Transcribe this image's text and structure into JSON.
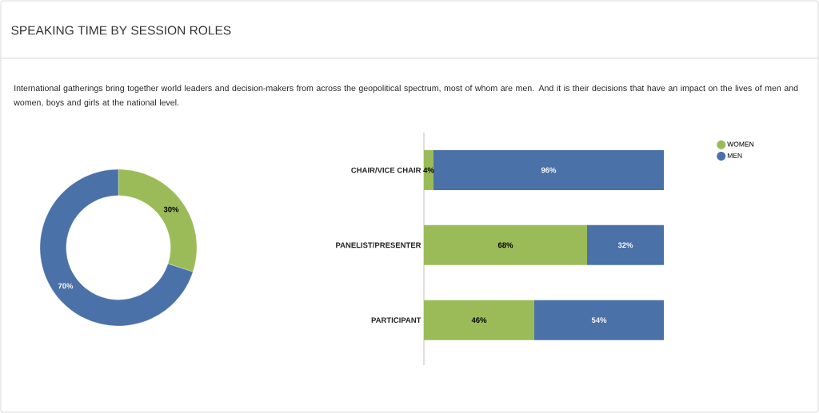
{
  "chart_data": [
    {
      "type": "donut",
      "title": "SPEAKING TIME BY SESSION ROLES",
      "subtitle": "International gatherings bring together world leaders and decision-makers from across the geopolitical spectrum, most of whom are men. And it is their decisions that have an impact on the lives of men and women, boys and girls at the national level.",
      "categories": [
        null,
        null
      ],
      "values": [
        30,
        70
      ],
      "colors": [
        "#9bbb59",
        "#4a71a8"
      ],
      "value_labels": [
        "30%",
        "70%"
      ]
    },
    {
      "type": "bar",
      "orientation": "horizontal",
      "stacked": true,
      "categories": [
        "CHAIR/VICE CHAIR",
        "PANELIST/PRESENTER",
        "PARTICIPANT"
      ],
      "xlim": [
        0,
        100
      ],
      "tick_labels": "y",
      "legend": "top right",
      "series": [
        {
          "name": "WOMEN",
          "color": "#9bbb59",
          "values": [
            4,
            68,
            46
          ],
          "value_labels": [
            "4%",
            "68%",
            "46%"
          ]
        },
        {
          "name": "MEN",
          "color": "#4a71a8",
          "values": [
            96,
            32,
            54
          ],
          "value_labels": [
            "96%",
            "32%",
            "54%"
          ]
        }
      ]
    }
  ]
}
